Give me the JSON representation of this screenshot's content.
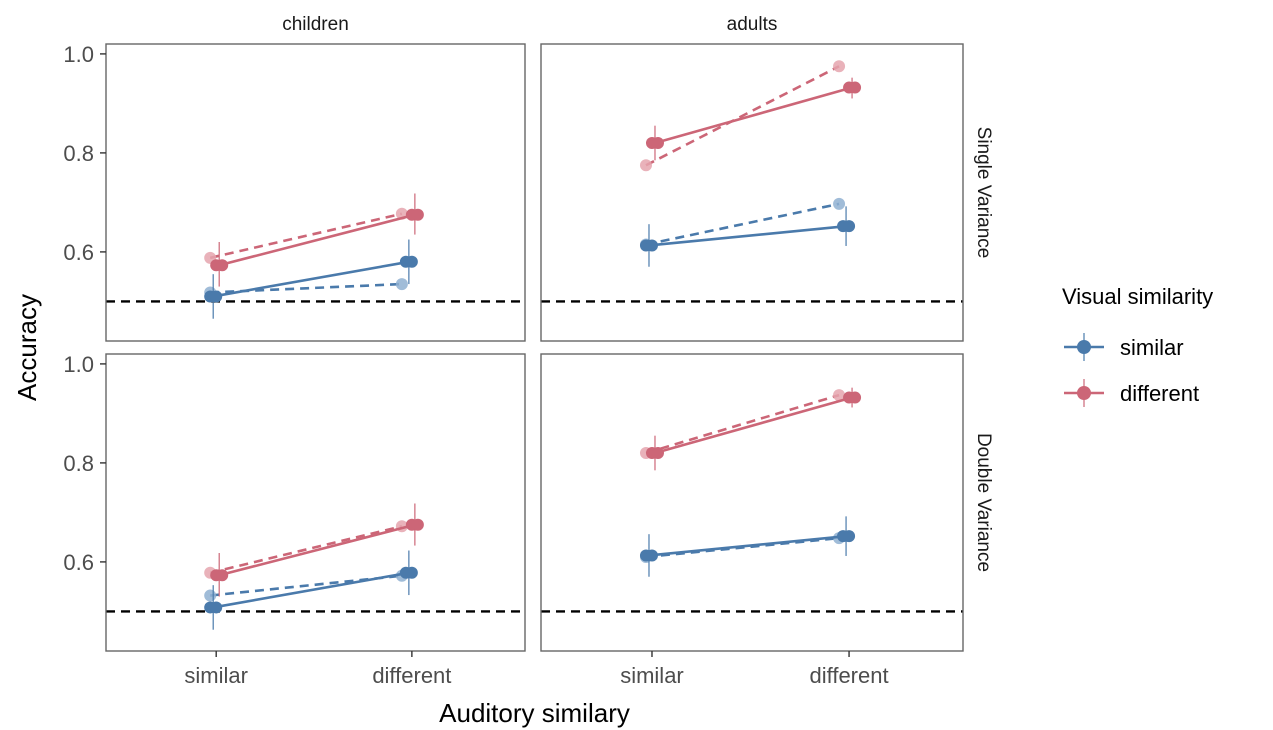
{
  "chart_data": {
    "type": "line",
    "ylabel": "Accuracy",
    "xlabel": "Auditory similary",
    "categories": [
      "similar",
      "different"
    ],
    "yticks": [
      0.6,
      0.8,
      1.0
    ],
    "ytick_labels": [
      "0.6",
      "0.8",
      "1.0"
    ],
    "ylim": [
      0.42,
      1.02
    ],
    "reference_line": 0.5,
    "column_facets": [
      "children",
      "adults"
    ],
    "row_facets": [
      "Single Variance",
      "Double Variance"
    ],
    "legend": {
      "title": "Visual similarity",
      "position": "right",
      "entries": [
        {
          "label": "similar",
          "color": "#4a7aab"
        },
        {
          "label": "different",
          "color": "#cc6677"
        }
      ]
    },
    "colors": {
      "similar": "#4a7aab",
      "different": "#cc6677",
      "similar_light": "#8fb0d1",
      "different_light": "#e5a4ae"
    },
    "panels": [
      {
        "col": "children",
        "row": "Single Variance",
        "model": [
          {
            "visual": "similar",
            "values": [
              0.51,
              0.58
            ],
            "lower": [
              0.465,
              0.535
            ],
            "upper": [
              0.555,
              0.625
            ]
          },
          {
            "visual": "different",
            "values": [
              0.573,
              0.675
            ],
            "lower": [
              0.53,
              0.635
            ],
            "upper": [
              0.62,
              0.718
            ]
          }
        ],
        "observed": [
          {
            "visual": "similar",
            "values": [
              0.518,
              0.535
            ]
          },
          {
            "visual": "different",
            "values": [
              0.588,
              0.677
            ]
          }
        ]
      },
      {
        "col": "adults",
        "row": "Single Variance",
        "model": [
          {
            "visual": "similar",
            "values": [
              0.613,
              0.652
            ],
            "lower": [
              0.57,
              0.612
            ],
            "upper": [
              0.656,
              0.692
            ]
          },
          {
            "visual": "different",
            "values": [
              0.82,
              0.932
            ],
            "lower": [
              0.785,
              0.91
            ],
            "upper": [
              0.855,
              0.952
            ]
          }
        ],
        "observed": [
          {
            "visual": "similar",
            "values": [
              0.615,
              0.697
            ]
          },
          {
            "visual": "different",
            "values": [
              0.775,
              0.975
            ]
          }
        ]
      },
      {
        "col": "children",
        "row": "Double Variance",
        "model": [
          {
            "visual": "similar",
            "values": [
              0.508,
              0.578
            ],
            "lower": [
              0.463,
              0.533
            ],
            "upper": [
              0.553,
              0.623
            ]
          },
          {
            "visual": "different",
            "values": [
              0.573,
              0.675
            ],
            "lower": [
              0.53,
              0.633
            ],
            "upper": [
              0.618,
              0.718
            ]
          }
        ],
        "observed": [
          {
            "visual": "similar",
            "values": [
              0.532,
              0.572
            ]
          },
          {
            "visual": "different",
            "values": [
              0.578,
              0.672
            ]
          }
        ]
      },
      {
        "col": "adults",
        "row": "Double Variance",
        "model": [
          {
            "visual": "similar",
            "values": [
              0.613,
              0.652
            ],
            "lower": [
              0.57,
              0.612
            ],
            "upper": [
              0.656,
              0.692
            ]
          },
          {
            "visual": "different",
            "values": [
              0.82,
              0.932
            ],
            "lower": [
              0.785,
              0.912
            ],
            "upper": [
              0.855,
              0.952
            ]
          }
        ],
        "observed": [
          {
            "visual": "similar",
            "values": [
              0.61,
              0.648
            ]
          },
          {
            "visual": "different",
            "values": [
              0.82,
              0.937
            ]
          }
        ]
      }
    ]
  }
}
